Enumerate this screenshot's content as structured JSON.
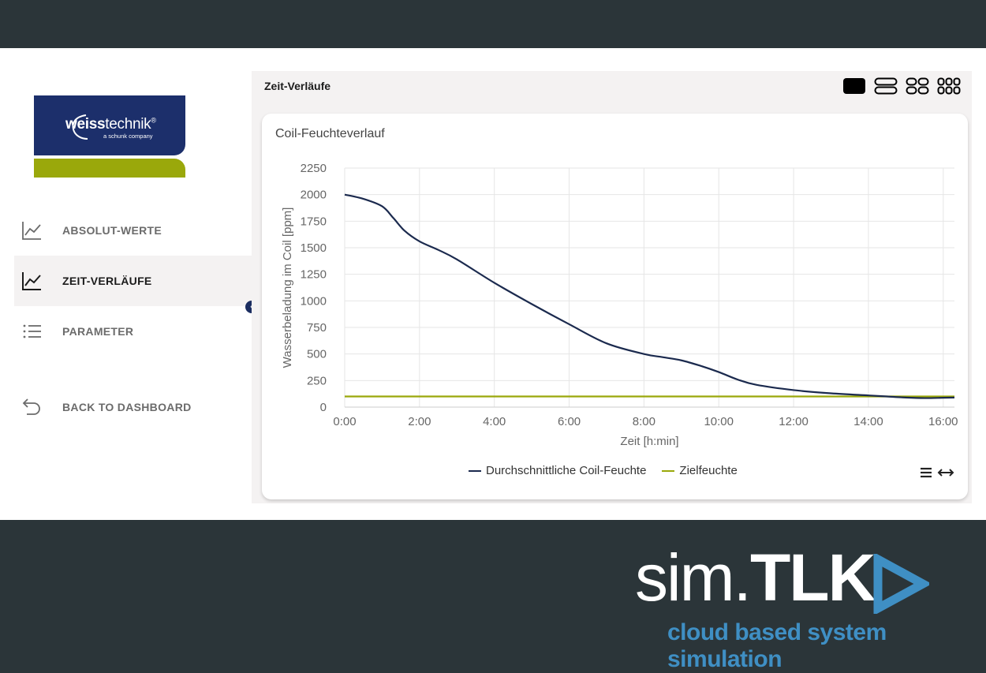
{
  "logo": {
    "name_bold": "weiss",
    "name_rest": "technik",
    "registered": "®",
    "subtitle": "a schunk company"
  },
  "nav": {
    "items": [
      {
        "label": "ABSOLUT-WERTE",
        "icon": "line-chart-icon",
        "active": false
      },
      {
        "label": "ZEIT-VERLÄUFE",
        "icon": "line-chart-icon",
        "active": true
      },
      {
        "label": "PARAMETER",
        "icon": "list-icon",
        "active": false
      }
    ],
    "back_label": "BACK TO DASHBOARD",
    "back_icon": "back-arrow-icon",
    "collapse_icon": "chevron-left-icon",
    "collapse_glyph": "‹"
  },
  "main": {
    "title": "Zeit-Verläufe",
    "layout_icons": [
      "layout-1-icon",
      "layout-2-icon",
      "layout-4-icon",
      "layout-6-icon"
    ]
  },
  "card": {
    "title": "Coil-Feuchteverlauf",
    "tools": [
      "menu-icon",
      "expand-horizontal-icon"
    ]
  },
  "chart_data": {
    "type": "line",
    "title": "Coil-Feuchteverlauf",
    "xlabel": "Zeit [h:min]",
    "ylabel": "Wasserbeladung im Coil [ppm]",
    "xlim": [
      0,
      16.3
    ],
    "ylim": [
      0,
      2250
    ],
    "x_ticks": [
      0,
      2,
      4,
      6,
      8,
      10,
      12,
      14,
      16
    ],
    "x_tick_labels": [
      "0:00",
      "2:00",
      "4:00",
      "6:00",
      "8:00",
      "10:00",
      "12:00",
      "14:00",
      "16:00"
    ],
    "y_ticks": [
      0,
      250,
      500,
      750,
      1000,
      1250,
      1500,
      1750,
      2000,
      2250
    ],
    "grid": true,
    "legend": "bottom-center",
    "series": [
      {
        "name": "Durchschnittliche Coil-Feuchte",
        "color": "#1b2a4e",
        "x": [
          0,
          0.5,
          1,
          1.3,
          1.6,
          2,
          2.5,
          3,
          4,
          5,
          6,
          7,
          8,
          8.5,
          9,
          9.5,
          10,
          10.5,
          11,
          12,
          13,
          14,
          14.5,
          15,
          15.5,
          16,
          16.3
        ],
        "y": [
          2000,
          1960,
          1890,
          1780,
          1660,
          1560,
          1480,
          1390,
          1170,
          970,
          780,
          600,
          500,
          470,
          440,
          390,
          330,
          260,
          210,
          160,
          130,
          110,
          100,
          90,
          85,
          88,
          90
        ]
      },
      {
        "name": "Zielfeuchte",
        "color": "#9aa80b",
        "x": [
          0,
          16.3
        ],
        "y": [
          100,
          100
        ]
      }
    ]
  },
  "brand": {
    "main_light": "sim.",
    "main_bold": "TLK",
    "sub": "cloud based system simulation",
    "color": "#3f8fc4"
  }
}
